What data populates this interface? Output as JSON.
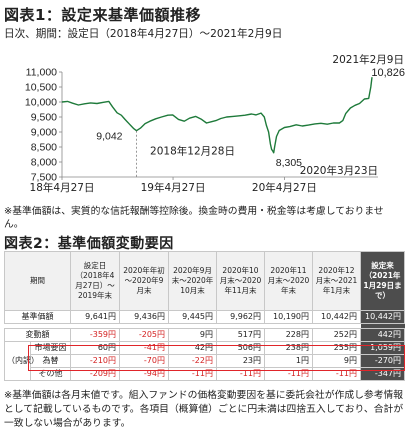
{
  "figure1": {
    "title": "図表1：設定来基準価額推移",
    "subtitle": "日次、期間：設定日（2018年4月27日）～2021年2月9日",
    "note": "※基準価額は、実質的な信託報酬等控除後。換金時の費用・税金等は考慮しておりません。"
  },
  "chart_data": {
    "type": "line",
    "ylim": [
      7500,
      11000
    ],
    "yticks": [
      "7,500",
      "8,000",
      "8,500",
      "9,000",
      "9,500",
      "10,000",
      "10,500",
      "11,000"
    ],
    "xticks": [
      "18年4月27日",
      "19年4月27日",
      "20年4月27日"
    ],
    "grid": false,
    "series": [
      {
        "x": [
          "2018-04-27",
          "2018-05-15",
          "2018-06-01",
          "2018-06-20",
          "2018-07-10",
          "2018-07-30",
          "2018-08-20",
          "2018-09-10",
          "2018-09-28",
          "2018-10-10",
          "2018-10-25",
          "2018-11-08",
          "2018-11-20",
          "2018-12-05",
          "2018-12-18",
          "2018-12-28",
          "2019-01-10",
          "2019-01-25",
          "2019-02-10",
          "2019-03-01",
          "2019-03-20",
          "2019-04-10",
          "2019-04-26",
          "2019-05-15",
          "2019-06-03",
          "2019-06-20",
          "2019-07-10",
          "2019-07-30",
          "2019-08-15",
          "2019-08-30",
          "2019-09-15",
          "2019-10-01",
          "2019-10-20",
          "2019-11-10",
          "2019-12-01",
          "2019-12-20",
          "2020-01-10",
          "2020-01-25",
          "2020-02-10",
          "2020-02-21",
          "2020-02-28",
          "2020-03-06",
          "2020-03-12",
          "2020-03-16",
          "2020-03-19",
          "2020-03-23",
          "2020-03-26",
          "2020-04-01",
          "2020-04-10",
          "2020-04-27",
          "2020-05-15",
          "2020-06-05",
          "2020-06-25",
          "2020-07-15",
          "2020-08-05",
          "2020-08-25",
          "2020-09-15",
          "2020-10-05",
          "2020-10-25",
          "2020-11-05",
          "2020-11-15",
          "2020-11-30",
          "2020-12-15",
          "2020-12-30",
          "2021-01-15",
          "2021-01-29",
          "2021-02-05",
          "2021-02-09"
        ],
        "y": [
          10000,
          10020,
          9960,
          9900,
          9940,
          9970,
          9950,
          9990,
          10020,
          9840,
          9640,
          9560,
          9420,
          9260,
          9120,
          9042,
          9130,
          9280,
          9360,
          9440,
          9500,
          9560,
          9570,
          9420,
          9360,
          9460,
          9520,
          9420,
          9300,
          9340,
          9380,
          9450,
          9500,
          9520,
          9540,
          9560,
          9600,
          9570,
          9630,
          9500,
          9220,
          9000,
          8600,
          8420,
          8380,
          8305,
          8500,
          8850,
          9050,
          9150,
          9180,
          9240,
          9200,
          9230,
          9270,
          9290,
          9260,
          9300,
          9300,
          9380,
          9620,
          9800,
          9890,
          9950,
          10100,
          10120,
          10500,
          10826
        ]
      }
    ],
    "annotations": [
      {
        "text": "9,042",
        "label": "2018年12月28日",
        "x": "2018-12-28",
        "y": 9042
      },
      {
        "text": "8,305",
        "label": "2020年3月23日",
        "x": "2020-03-23",
        "y": 8305
      },
      {
        "text": "10,826",
        "label": "2021年2月9日",
        "x": "2021-02-09",
        "y": 10826
      }
    ]
  },
  "figure2": {
    "title": "図表2：基準価額変動要因",
    "headers": [
      "期間",
      "設定日（2018年4月27日）～2019年末",
      "2020年年初～2020年9月末",
      "2020年9月末～2020年10月末",
      "2020年10月末～2020年11月末",
      "2020年11月末～2020年末",
      "2020年12月末～2021年1月末",
      "設定来（2021年1月29日まで）"
    ],
    "nav_label": "基準価額",
    "nav_values": [
      "9,641円",
      "9,436円",
      "9,445円",
      "9,962円",
      "10,190円",
      "10,442円",
      "10,442円"
    ],
    "change_label": "変動額",
    "change_values": [
      "-359円",
      "-205円",
      "9円",
      "517円",
      "228円",
      "252円",
      "442円"
    ],
    "breakdown_label": "（内訳）",
    "rows": [
      {
        "label": "市場要因",
        "values": [
          "60円",
          "-41円",
          "42円",
          "506円",
          "238円",
          "255円",
          "1,059円"
        ]
      },
      {
        "label": "為替",
        "values": [
          "-210円",
          "-70円",
          "-22円",
          "23円",
          "1円",
          "9円",
          "-270円"
        ]
      },
      {
        "label": "その他",
        "values": [
          "-209円",
          "-94円",
          "-11円",
          "-11円",
          "-11円",
          "-11円",
          "-347円"
        ]
      }
    ],
    "note": "※基準価額は各月末値です。組入ファンドの価格変動要因を基に委託会社が作成し参考情報として記載しているものです。各項目（概算値）ごとに円未満は四捨五入しており、合計が一致しない場合があります。"
  }
}
